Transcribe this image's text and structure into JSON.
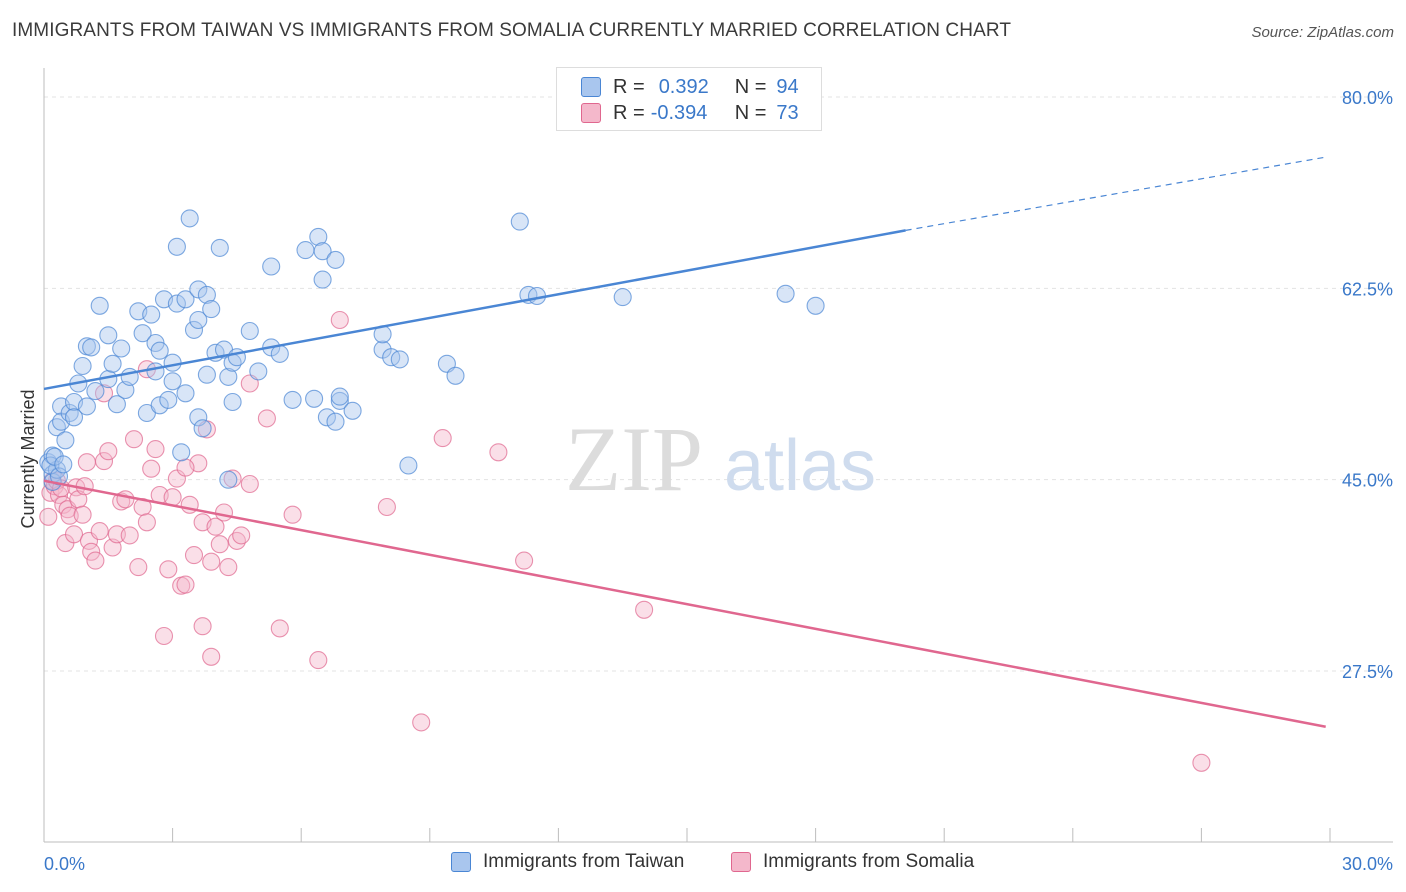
{
  "title": "IMMIGRANTS FROM TAIWAN VS IMMIGRANTS FROM SOMALIA CURRENTLY MARRIED CORRELATION CHART",
  "source": "Source: ZipAtlas.com",
  "watermark": {
    "zip": "ZIP",
    "atlas": "atlas"
  },
  "colors": {
    "taiwan": "#4a86d4",
    "taiwan_fill": "#a9c6ee",
    "somalia": "#e0678f",
    "somalia_fill": "#f4b8cb",
    "axis_label": "#3a78c9",
    "grid": "#e3e3e3"
  },
  "legend_top": {
    "rows": [
      {
        "r_label": "R =",
        "r_value": "0.392",
        "n_label": "N =",
        "n_value": "94"
      },
      {
        "r_label": "R =",
        "r_value": "-0.394",
        "n_label": "N =",
        "n_value": "73"
      }
    ]
  },
  "chart_data": {
    "type": "scatter",
    "xlabel": "",
    "ylabel": "Currently Married",
    "xlim": [
      0,
      30
    ],
    "ylim": [
      10,
      82
    ],
    "x_tick_labels": [
      {
        "value": 0,
        "label": "0.0%"
      },
      {
        "value": 30,
        "label": "30.0%"
      }
    ],
    "y_tick_labels": [
      {
        "value": 80,
        "label": "80.0%"
      },
      {
        "value": 62.5,
        "label": "62.5%"
      },
      {
        "value": 45,
        "label": "45.0%"
      },
      {
        "value": 27.5,
        "label": "27.5%"
      }
    ],
    "grid": true,
    "legend_position": "top-center",
    "series": [
      {
        "name": "Immigrants from Taiwan",
        "color": "#4a86d4",
        "R": 0.392,
        "N": 94,
        "trend": {
          "x_start": 0,
          "y_start": 53.3,
          "x_solid_end": 20.1,
          "y_solid_end": 67.8,
          "x_end": 29.9,
          "y_end": 74.5
        },
        "points": [
          [
            0.1,
            46.6
          ],
          [
            0.2,
            45.5
          ],
          [
            0.2,
            47.2
          ],
          [
            0.2,
            44.8
          ],
          [
            0.3,
            45.9
          ],
          [
            0.3,
            49.8
          ],
          [
            0.4,
            51.7
          ],
          [
            0.4,
            50.3
          ],
          [
            0.5,
            48.6
          ],
          [
            0.6,
            51.1
          ],
          [
            0.7,
            52.1
          ],
          [
            0.7,
            50.7
          ],
          [
            0.8,
            53.8
          ],
          [
            0.9,
            55.4
          ],
          [
            1.0,
            57.2
          ],
          [
            1.0,
            51.7
          ],
          [
            1.1,
            57.1
          ],
          [
            1.2,
            53.1
          ],
          [
            1.3,
            60.9
          ],
          [
            1.5,
            58.2
          ],
          [
            1.5,
            54.2
          ],
          [
            1.6,
            55.6
          ],
          [
            1.7,
            51.9
          ],
          [
            1.8,
            57.0
          ],
          [
            1.9,
            53.2
          ],
          [
            2.0,
            54.4
          ],
          [
            2.2,
            60.4
          ],
          [
            2.3,
            58.4
          ],
          [
            2.4,
            51.1
          ],
          [
            2.5,
            60.1
          ],
          [
            2.6,
            57.5
          ],
          [
            2.6,
            54.9
          ],
          [
            2.7,
            56.8
          ],
          [
            2.7,
            51.8
          ],
          [
            2.8,
            61.5
          ],
          [
            2.9,
            52.3
          ],
          [
            3.0,
            54.0
          ],
          [
            3.0,
            55.7
          ],
          [
            3.1,
            61.1
          ],
          [
            3.1,
            66.3
          ],
          [
            3.2,
            47.5
          ],
          [
            3.3,
            52.9
          ],
          [
            3.3,
            61.5
          ],
          [
            3.4,
            68.9
          ],
          [
            3.5,
            58.7
          ],
          [
            3.6,
            59.6
          ],
          [
            3.6,
            62.4
          ],
          [
            3.6,
            50.7
          ],
          [
            3.7,
            49.7
          ],
          [
            3.8,
            61.9
          ],
          [
            3.8,
            54.6
          ],
          [
            3.9,
            60.6
          ],
          [
            4.0,
            56.6
          ],
          [
            4.1,
            66.2
          ],
          [
            4.2,
            56.9
          ],
          [
            4.3,
            45.0
          ],
          [
            4.3,
            54.4
          ],
          [
            4.4,
            52.1
          ],
          [
            4.4,
            55.7
          ],
          [
            4.5,
            56.2
          ],
          [
            4.8,
            58.6
          ],
          [
            5.0,
            54.9
          ],
          [
            5.3,
            57.1
          ],
          [
            5.3,
            64.5
          ],
          [
            5.5,
            56.5
          ],
          [
            5.8,
            52.3
          ],
          [
            6.1,
            66.0
          ],
          [
            6.3,
            52.4
          ],
          [
            6.4,
            67.2
          ],
          [
            6.5,
            65.9
          ],
          [
            6.5,
            63.3
          ],
          [
            6.6,
            50.7
          ],
          [
            6.8,
            65.1
          ],
          [
            6.8,
            50.3
          ],
          [
            6.9,
            52.2
          ],
          [
            6.9,
            52.6
          ],
          [
            7.2,
            51.3
          ],
          [
            7.9,
            56.9
          ],
          [
            7.9,
            58.3
          ],
          [
            8.1,
            56.2
          ],
          [
            8.3,
            56.0
          ],
          [
            8.5,
            46.3
          ],
          [
            9.4,
            55.6
          ],
          [
            9.6,
            54.5
          ],
          [
            11.1,
            68.6
          ],
          [
            11.3,
            61.9
          ],
          [
            11.5,
            61.8
          ],
          [
            13.5,
            61.7
          ],
          [
            17.3,
            62.0
          ],
          [
            18.0,
            60.9
          ],
          [
            0.15,
            46.3
          ],
          [
            0.25,
            47.1
          ],
          [
            0.35,
            45.3
          ],
          [
            0.45,
            46.4
          ]
        ]
      },
      {
        "name": "Immigrants from Somalia",
        "color": "#e0678f",
        "R": -0.394,
        "N": 73,
        "trend": {
          "x_start": 0,
          "y_start": 44.9,
          "x_end": 29.9,
          "y_end": 22.4
        },
        "points": [
          [
            0.1,
            41.6
          ],
          [
            0.15,
            43.8
          ],
          [
            0.2,
            44.9
          ],
          [
            0.25,
            44.4
          ],
          [
            0.3,
            44.9
          ],
          [
            0.35,
            43.6
          ],
          [
            0.4,
            44.2
          ],
          [
            0.45,
            42.7
          ],
          [
            0.5,
            39.2
          ],
          [
            0.55,
            42.3
          ],
          [
            0.6,
            41.7
          ],
          [
            0.7,
            40.0
          ],
          [
            0.75,
            44.3
          ],
          [
            0.8,
            43.2
          ],
          [
            0.9,
            41.8
          ],
          [
            0.95,
            44.4
          ],
          [
            1.0,
            46.6
          ],
          [
            1.05,
            39.4
          ],
          [
            1.1,
            38.4
          ],
          [
            1.2,
            37.6
          ],
          [
            1.3,
            40.3
          ],
          [
            1.4,
            46.7
          ],
          [
            1.5,
            47.6
          ],
          [
            1.6,
            38.8
          ],
          [
            1.7,
            40.0
          ],
          [
            1.8,
            43.0
          ],
          [
            1.9,
            43.2
          ],
          [
            2.0,
            39.9
          ],
          [
            2.1,
            48.7
          ],
          [
            2.2,
            37.0
          ],
          [
            2.3,
            42.5
          ],
          [
            2.4,
            41.1
          ],
          [
            2.5,
            46.0
          ],
          [
            2.6,
            47.8
          ],
          [
            2.7,
            43.6
          ],
          [
            2.8,
            30.7
          ],
          [
            2.9,
            36.8
          ],
          [
            3.0,
            43.4
          ],
          [
            3.1,
            45.1
          ],
          [
            3.2,
            35.3
          ],
          [
            3.3,
            35.4
          ],
          [
            3.4,
            42.7
          ],
          [
            3.5,
            38.1
          ],
          [
            3.6,
            46.5
          ],
          [
            3.7,
            41.1
          ],
          [
            3.8,
            49.6
          ],
          [
            3.9,
            37.5
          ],
          [
            4.0,
            40.7
          ],
          [
            4.1,
            39.1
          ],
          [
            4.2,
            42.0
          ],
          [
            4.3,
            37.0
          ],
          [
            4.4,
            45.1
          ],
          [
            4.5,
            39.4
          ],
          [
            4.6,
            39.9
          ],
          [
            4.8,
            44.6
          ],
          [
            5.2,
            50.6
          ],
          [
            5.5,
            31.4
          ],
          [
            5.8,
            41.8
          ],
          [
            6.4,
            28.5
          ],
          [
            6.9,
            59.6
          ],
          [
            8.0,
            42.5
          ],
          [
            8.8,
            22.8
          ],
          [
            9.3,
            48.8
          ],
          [
            10.6,
            47.5
          ],
          [
            11.2,
            37.6
          ],
          [
            14.0,
            33.1
          ],
          [
            27.0,
            19.1
          ],
          [
            3.9,
            28.8
          ],
          [
            3.7,
            31.6
          ],
          [
            1.4,
            52.9
          ],
          [
            2.4,
            55.1
          ],
          [
            3.3,
            46.1
          ],
          [
            4.8,
            53.8
          ]
        ]
      }
    ]
  },
  "bottom_legend": {
    "items": [
      {
        "label": "Immigrants from Taiwan"
      },
      {
        "label": "Immigrants from Somalia"
      }
    ]
  }
}
